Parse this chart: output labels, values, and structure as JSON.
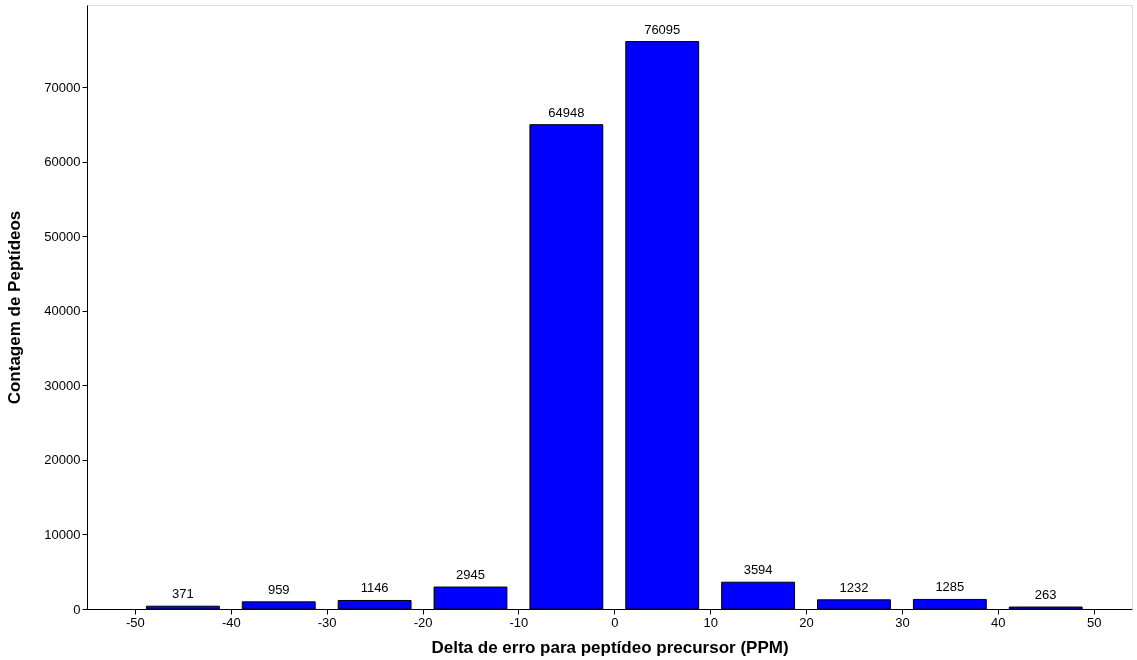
{
  "chart_data": {
    "type": "histogram",
    "xlabel": "Delta de erro para peptídeo precursor (PPM)",
    "ylabel": "Contagem de Peptídeos",
    "bins": [
      -50,
      -40,
      -30,
      -20,
      -10,
      0,
      10,
      20,
      30,
      40,
      50
    ],
    "values": [
      371,
      959,
      1146,
      2945,
      64948,
      76095,
      3594,
      1232,
      1285,
      263
    ],
    "color": "#0000ff",
    "data_labels": true,
    "grid": false,
    "xlim": [
      -55,
      54
    ],
    "xticks": [
      -50,
      -40,
      -30,
      -20,
      -10,
      0,
      10,
      20,
      30,
      40,
      50
    ],
    "ylim": [
      0,
      81000
    ],
    "yticks": [
      0,
      10000,
      20000,
      30000,
      40000,
      50000,
      60000,
      70000
    ]
  }
}
